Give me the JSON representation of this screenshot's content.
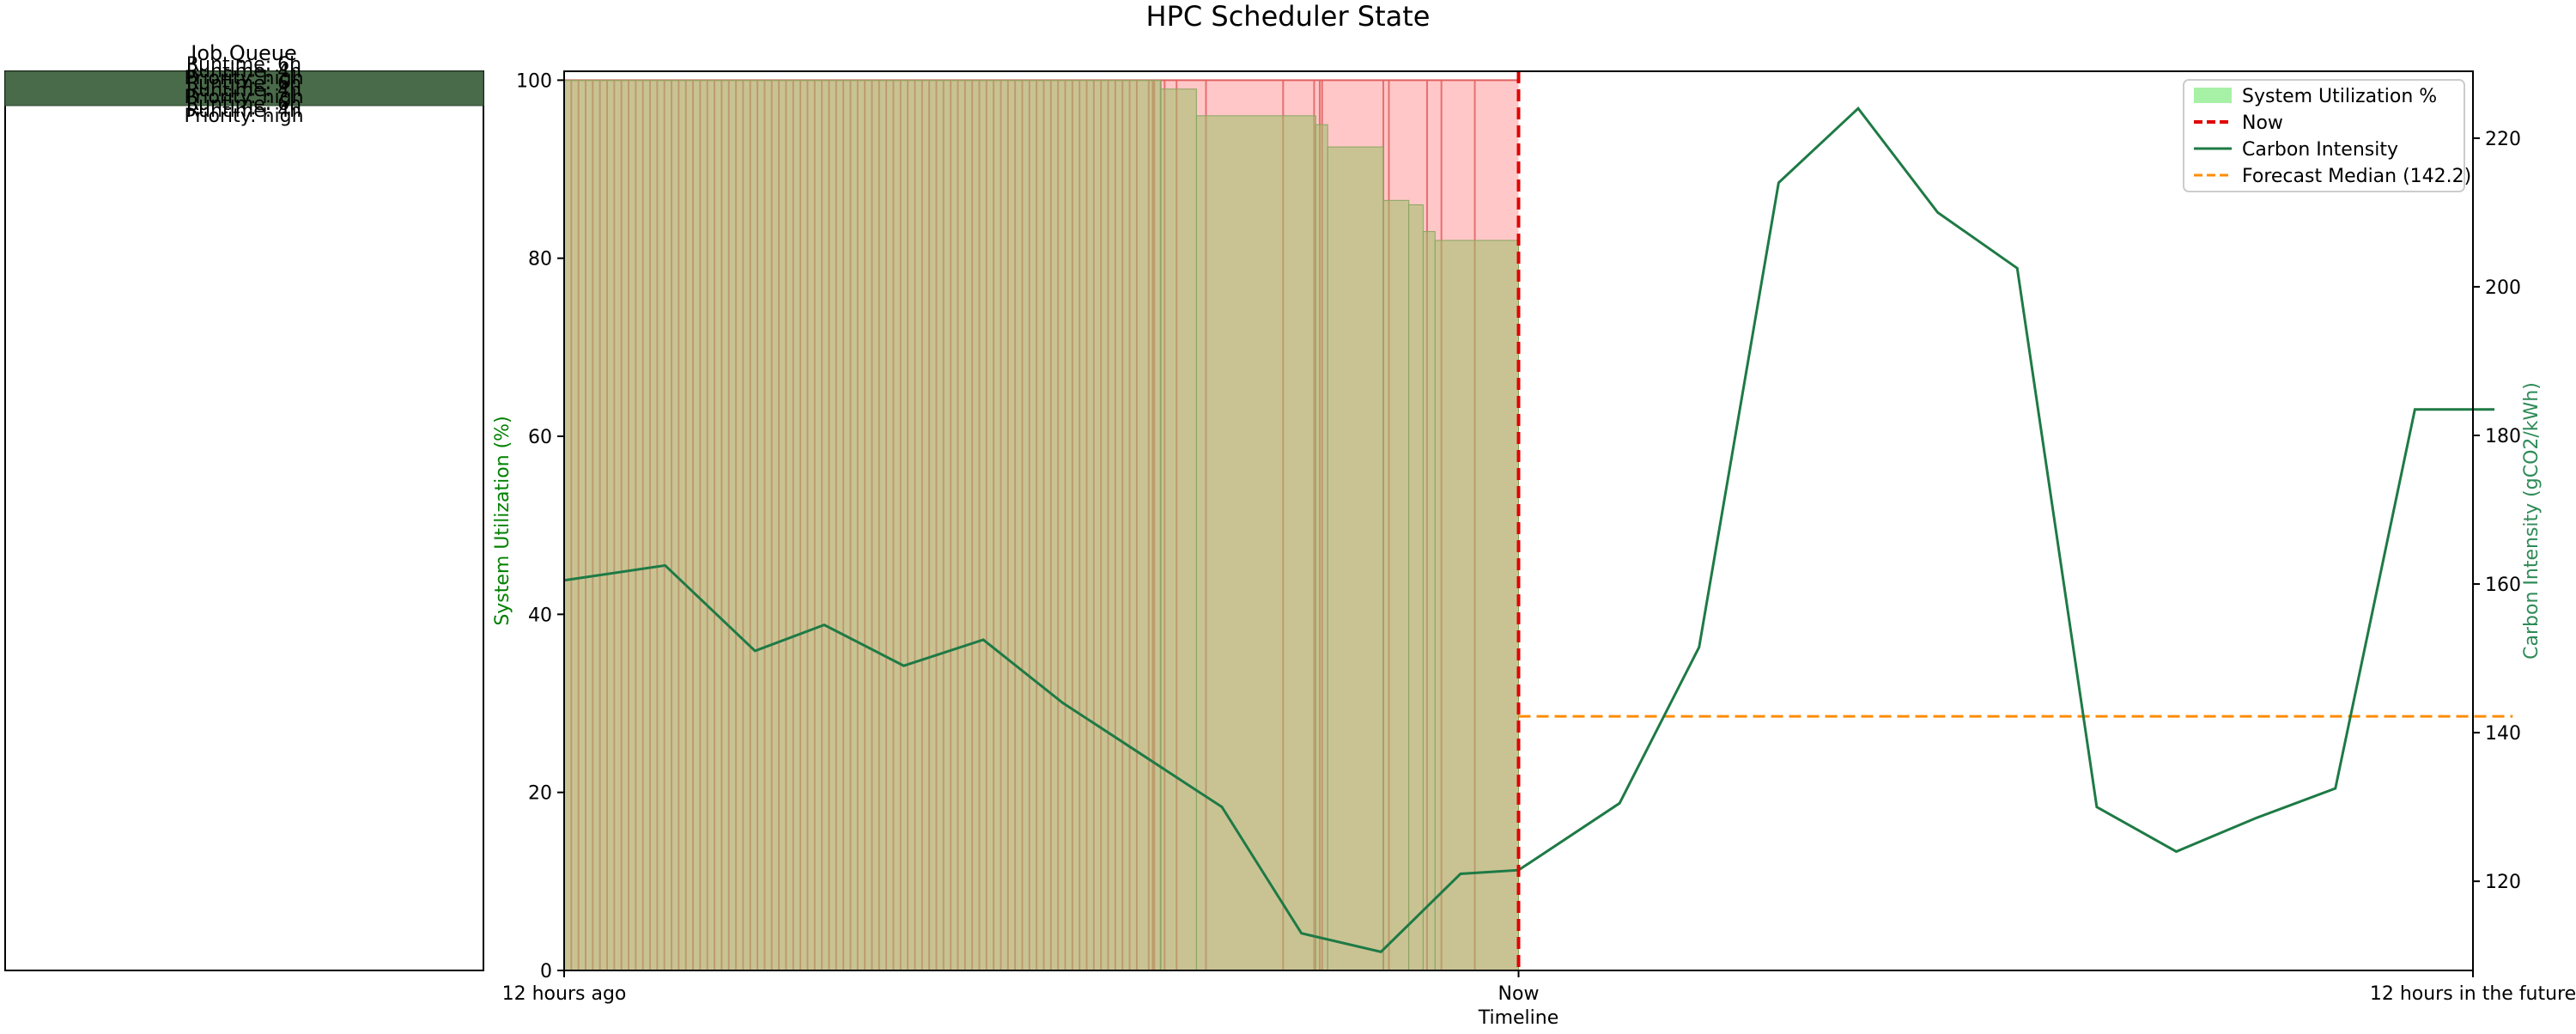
{
  "title": "HPC Scheduler State",
  "queue_panel": {
    "title": "Job Queue",
    "overlapping_labels": [
      "Runtime: 6h",
      "Runtime: 4h",
      "Priority: high"
    ]
  },
  "colors": {
    "utilization_fill": "#90ee90",
    "job_band": "#ff9999",
    "job_band_edge": "#e06060",
    "now_line": "#e00000",
    "carbon_line": "#1e7a45",
    "forecast_line": "#ff8c00",
    "queue_block": "#4a6b4a",
    "left_axis_label": "#008000",
    "right_axis_label": "#2e8b57"
  },
  "chart_data": {
    "type": "line",
    "title": "HPC Scheduler State",
    "xlabel": "Timeline",
    "x_range_hours": [
      -12,
      12
    ],
    "x_ticks": [
      {
        "x": -12,
        "label": "12 hours ago"
      },
      {
        "x": 0,
        "label": "Now"
      },
      {
        "x": 12,
        "label": "12 hours in the future"
      }
    ],
    "y_left": {
      "label": "System Utilization (%)",
      "lim": [
        0,
        101
      ],
      "ticks": [
        0,
        20,
        40,
        60,
        80,
        100
      ]
    },
    "y_right": {
      "label": "Carbon Intensity (gCO2/kWh)",
      "lim": [
        108,
        229
      ],
      "ticks": [
        120,
        140,
        160,
        180,
        200,
        220
      ]
    },
    "legend": {
      "placement": "top-right",
      "entries": [
        "System Utilization %",
        "Now",
        "Carbon Intensity",
        "Forecast Median (142.2)"
      ]
    },
    "job_bands": {
      "range_hours": [
        -12,
        0
      ],
      "top_value": 100,
      "dense_start": -12,
      "dense_end": -4.72,
      "dense_step": 0.09,
      "extra_lines": [
        -4.65,
        -4.6,
        -4.58,
        -4.5,
        -4.45,
        -4.3,
        -3.93,
        -2.96,
        -2.57,
        -2.5,
        -2.47,
        -1.7,
        -1.63,
        -1.15,
        -0.97,
        -0.55
      ]
    },
    "utilization": {
      "name": "System Utilization %",
      "steps": [
        {
          "x0": -12,
          "x1": -4.5,
          "y": 100
        },
        {
          "x0": -4.5,
          "x1": -4.05,
          "y": 99
        },
        {
          "x0": -4.05,
          "x1": -2.55,
          "y": 96
        },
        {
          "x0": -2.55,
          "x1": -2.4,
          "y": 95
        },
        {
          "x0": -2.4,
          "x1": -1.7,
          "y": 92.5
        },
        {
          "x0": -1.7,
          "x1": -1.38,
          "y": 86.5
        },
        {
          "x0": -1.38,
          "x1": -1.2,
          "y": 86
        },
        {
          "x0": -1.2,
          "x1": -1.05,
          "y": 83
        },
        {
          "x0": -1.05,
          "x1": 0,
          "y": 82
        }
      ]
    },
    "carbon_intensity": {
      "name": "Carbon Intensity",
      "x": [
        -12,
        -10.73,
        -9.6,
        -8.73,
        -7.73,
        -6.73,
        -5.73,
        -4.73,
        -3.73,
        -2.73,
        -1.73,
        -0.73,
        0,
        1.27,
        2.27,
        3.27,
        4.27,
        5.27,
        6.27,
        7.27,
        8.27,
        9.27,
        10.27,
        11.27,
        12.27
      ],
      "y": [
        160.5,
        162.5,
        151,
        154.5,
        149,
        152.5,
        144,
        137,
        130,
        113,
        110.5,
        121,
        121.5,
        130.5,
        151.5,
        214,
        224,
        210,
        202.5,
        130,
        124,
        128.5,
        132.5,
        183.5,
        183.5
      ]
    },
    "forecast_median": {
      "name": "Forecast Median (142.2)",
      "value": 142.2,
      "x_range": [
        0,
        12.5
      ]
    },
    "now_line": {
      "name": "Now",
      "x": 0
    }
  }
}
